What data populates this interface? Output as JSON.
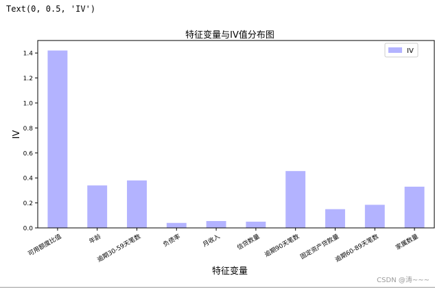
{
  "console_output": "Text(0, 0.5, 'IV')",
  "watermark": "CSDN @涛~~~",
  "colors": {
    "bar": "#b3b3ff",
    "axis": "#000000"
  },
  "chart_data": {
    "type": "bar",
    "title": "特征变量与IV值分布图",
    "xlabel": "特征变量",
    "ylabel": "IV",
    "ylim": [
      0,
      1.5
    ],
    "yticks": [
      "0.0",
      "0.2",
      "0.4",
      "0.6",
      "0.8",
      "1.0",
      "1.2",
      "1.4"
    ],
    "categories": [
      "可用额度比值",
      "年龄",
      "逾期30-59天笔数",
      "负债率",
      "月收入",
      "信贷数量",
      "逾期90天笔数",
      "固定资产贷款量",
      "逾期60-89天笔数",
      "家属数量"
    ],
    "series": [
      {
        "name": "IV",
        "values": [
          1.42,
          0.34,
          0.38,
          0.04,
          0.055,
          0.05,
          0.455,
          0.15,
          0.185,
          0.33
        ]
      }
    ],
    "legend": "top-right",
    "grid": false
  }
}
